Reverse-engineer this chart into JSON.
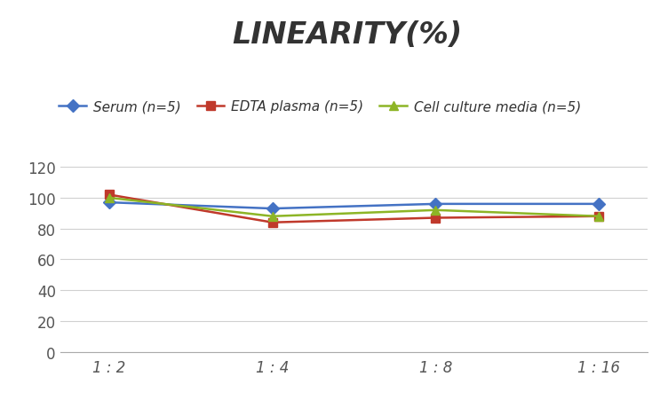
{
  "title": "LINEARITY(%)",
  "x_labels": [
    "1 : 2",
    "1 : 4",
    "1 : 8",
    "1 : 16"
  ],
  "x_positions": [
    0,
    1,
    2,
    3
  ],
  "series": [
    {
      "label": "Serum (n=5)",
      "values": [
        97,
        93,
        96,
        96
      ],
      "color": "#4472C4",
      "marker": "D",
      "marker_size": 7,
      "linewidth": 1.8
    },
    {
      "label": "EDTA plasma (n=5)",
      "values": [
        102,
        84,
        87,
        88
      ],
      "color": "#C0392B",
      "marker": "s",
      "marker_size": 7,
      "linewidth": 1.8
    },
    {
      "label": "Cell culture media (n=5)",
      "values": [
        100,
        88,
        92,
        88
      ],
      "color": "#8DB526",
      "marker": "^",
      "marker_size": 7,
      "linewidth": 1.8
    }
  ],
  "ylim": [
    0,
    130
  ],
  "yticks": [
    0,
    20,
    40,
    60,
    80,
    100,
    120
  ],
  "background_color": "#ffffff",
  "title_fontsize": 24,
  "title_color": "#333333",
  "tick_fontsize": 12,
  "legend_fontsize": 11,
  "grid_color": "#d0d0d0"
}
